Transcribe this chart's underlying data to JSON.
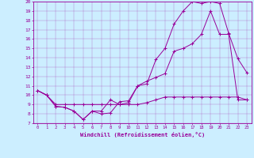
{
  "xlabel": "Windchill (Refroidissement éolien,°C)",
  "bg_color": "#cceeff",
  "line_color": "#990099",
  "xlim": [
    -0.5,
    23.5
  ],
  "ylim": [
    7,
    20
  ],
  "xticks": [
    0,
    1,
    2,
    3,
    4,
    5,
    6,
    7,
    8,
    9,
    10,
    11,
    12,
    13,
    14,
    15,
    16,
    17,
    18,
    19,
    20,
    21,
    22,
    23
  ],
  "yticks": [
    7,
    8,
    9,
    10,
    11,
    12,
    13,
    14,
    15,
    16,
    17,
    18,
    19,
    20
  ],
  "line1_x": [
    0,
    1,
    2,
    3,
    4,
    5,
    6,
    7,
    8,
    9,
    10,
    11,
    12,
    13,
    14,
    15,
    16,
    17,
    18,
    19,
    20,
    21,
    22,
    23
  ],
  "line1_y": [
    10.5,
    10.0,
    8.8,
    8.7,
    8.3,
    7.4,
    8.3,
    8.0,
    8.1,
    9.3,
    9.4,
    11.0,
    11.2,
    13.8,
    15.0,
    17.6,
    19.0,
    20.0,
    19.8,
    20.0,
    19.8,
    16.6,
    13.9,
    12.4
  ],
  "line2_x": [
    0,
    1,
    2,
    3,
    4,
    5,
    6,
    7,
    8,
    9,
    10,
    11,
    12,
    13,
    14,
    15,
    16,
    17,
    18,
    19,
    20,
    21,
    22,
    23
  ],
  "line2_y": [
    10.5,
    10.0,
    8.8,
    8.7,
    8.3,
    7.4,
    8.3,
    8.3,
    9.5,
    9.0,
    9.2,
    11.0,
    11.5,
    11.9,
    12.3,
    14.7,
    15.0,
    15.5,
    16.5,
    19.0,
    16.5,
    16.5,
    9.5,
    9.5
  ],
  "line3_x": [
    0,
    1,
    2,
    3,
    4,
    5,
    6,
    7,
    8,
    9,
    10,
    11,
    12,
    13,
    14,
    15,
    16,
    17,
    18,
    19,
    20,
    21,
    22,
    23
  ],
  "line3_y": [
    10.5,
    10.0,
    9.0,
    9.0,
    9.0,
    9.0,
    9.0,
    9.0,
    9.0,
    9.0,
    9.0,
    9.0,
    9.2,
    9.5,
    9.8,
    9.8,
    9.8,
    9.8,
    9.8,
    9.8,
    9.8,
    9.8,
    9.8,
    9.5
  ]
}
